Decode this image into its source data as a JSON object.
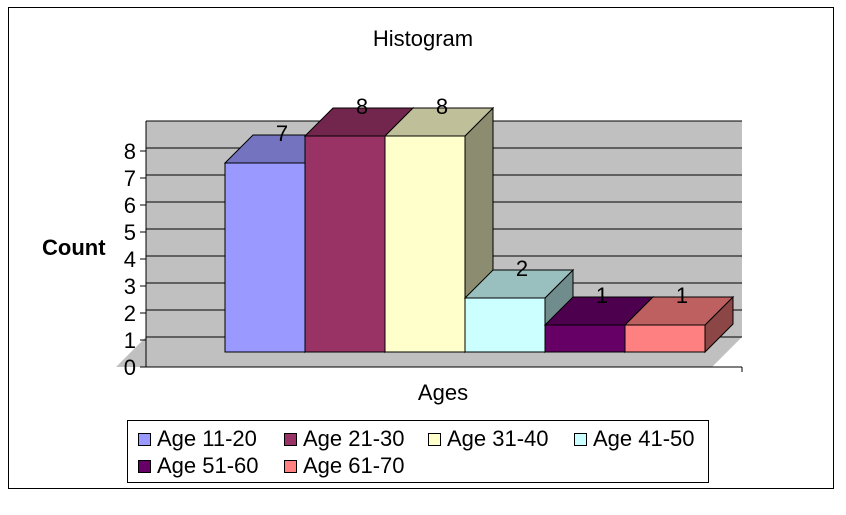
{
  "chart_data": {
    "type": "bar",
    "title": "Histogram",
    "xlabel": "Ages",
    "ylabel": "Count",
    "ylim": [
      0,
      8
    ],
    "yticks": [
      "0",
      "1",
      "2",
      "3",
      "4",
      "5",
      "6",
      "7",
      "8"
    ],
    "grid": true,
    "legend_position": "bottom",
    "series": [
      {
        "name": "Age 11-20",
        "values": [
          7
        ],
        "color": "#9999ff"
      },
      {
        "name": "Age 21-30",
        "values": [
          8
        ],
        "color": "#993366"
      },
      {
        "name": "Age 31-40",
        "values": [
          8
        ],
        "color": "#ffffcc"
      },
      {
        "name": "Age 41-50",
        "values": [
          2
        ],
        "color": "#ccffff"
      },
      {
        "name": "Age 51-60",
        "values": [
          1
        ],
        "color": "#660066"
      },
      {
        "name": "Age 61-70",
        "values": [
          1
        ],
        "color": "#ff8080"
      }
    ],
    "data_labels": [
      "7",
      "8",
      "8",
      "2",
      "1",
      "1"
    ]
  }
}
